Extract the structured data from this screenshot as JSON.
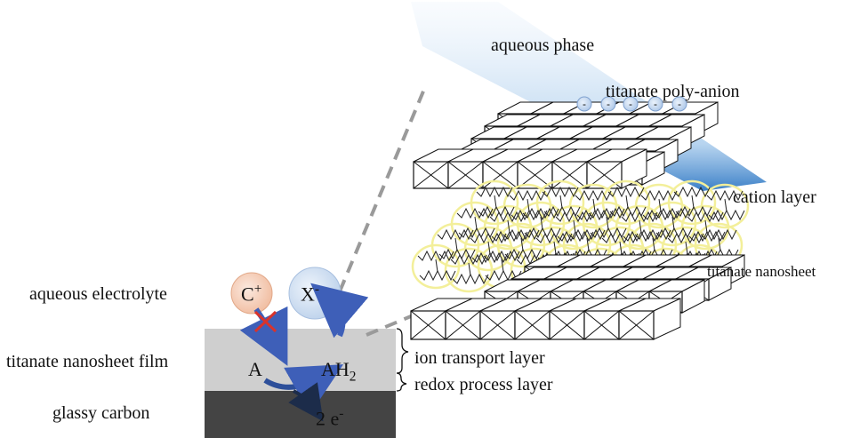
{
  "labels": {
    "aqueous_phase": "aqueous phase",
    "titanate_poly_anion": "titanate poly-anion",
    "cation_layer": "cation layer",
    "titanate_nanosheet": "titanate nanosheet",
    "aqueous_electrolyte": "aqueous electrolyte",
    "titanate_nanosheet_film": "titanate nanosheet film",
    "glassy_carbon": "glassy carbon",
    "ion_transport_layer": "ion transport layer",
    "redox_process_layer": "redox process layer"
  },
  "species": {
    "cation_base": "C",
    "cation_charge": "+",
    "anion_base": "X",
    "anion_charge": "-",
    "reduced": "A",
    "oxidized_base": "AH",
    "oxidized_sub": "2",
    "electrons_base": "2 e",
    "electrons_charge": "-"
  },
  "charge_sign": "-",
  "colors": {
    "film_gray": "#cfcfcf",
    "carbon_dark": "#444444",
    "arrow_blue": "#3e5fb8",
    "cross_red": "#d8332c",
    "cation_circle": "#f4c7ae",
    "anion_circle": "#c9d8ee",
    "halo_yellow": "#f3ef9a",
    "dashed_gray": "#9a9a9a",
    "aqueous_blue": "#3f86cc"
  }
}
